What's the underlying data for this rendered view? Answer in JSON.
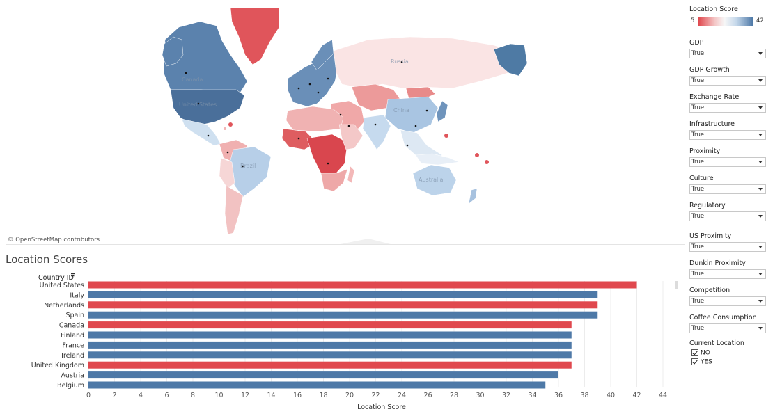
{
  "map": {
    "attribution": "© OpenStreetMap contributors"
  },
  "legend": {
    "title": "Location Score",
    "min_label": "5",
    "max_label": "42",
    "low_color": "#e0484e",
    "mid_color": "#f7f7f7",
    "high_color": "#4e79a7"
  },
  "filters": [
    {
      "label": "GDP",
      "value": "True"
    },
    {
      "label": "GDP Growth",
      "value": "True"
    },
    {
      "label": "Exchange Rate",
      "value": "True"
    },
    {
      "label": "Infrastructure",
      "value": "True"
    },
    {
      "label": "Proximity",
      "value": "True"
    },
    {
      "label": "Culture",
      "value": "True"
    },
    {
      "label": "Regulatory",
      "value": "True"
    },
    {
      "label": "US Proximity",
      "value": "True"
    },
    {
      "label": "Dunkin Proximity",
      "value": "True"
    },
    {
      "label": "Competition",
      "value": "True"
    },
    {
      "label": "Coffee Consumption",
      "value": "True"
    }
  ],
  "current_location": {
    "title": "Current Location",
    "options": [
      {
        "label": "NO",
        "checked": true
      },
      {
        "label": "YES",
        "checked": true
      }
    ]
  },
  "chart_data": {
    "type": "bar",
    "orientation": "horizontal",
    "title": "Location Scores",
    "ylabel": "Country ID",
    "xlabel": "Location Score",
    "xlim": [
      0,
      45
    ],
    "xticks": [
      0,
      2,
      4,
      6,
      8,
      10,
      12,
      14,
      16,
      18,
      20,
      22,
      24,
      26,
      28,
      30,
      32,
      34,
      36,
      38,
      40,
      42,
      44
    ],
    "grid": true,
    "categories": [
      "United States",
      "Italy",
      "Netherlands",
      "Spain",
      "Canada",
      "Finland",
      "France",
      "Ireland",
      "United Kingdom",
      "Austria",
      "Belgium"
    ],
    "values": [
      42,
      39,
      39,
      39,
      37,
      37,
      37,
      37,
      37,
      36,
      35
    ],
    "bar_colors": [
      "#e0484e",
      "#4e79a7",
      "#e0484e",
      "#4e79a7",
      "#e0484e",
      "#4e79a7",
      "#4e79a7",
      "#4e79a7",
      "#e0484e",
      "#4e79a7",
      "#4e79a7"
    ]
  }
}
